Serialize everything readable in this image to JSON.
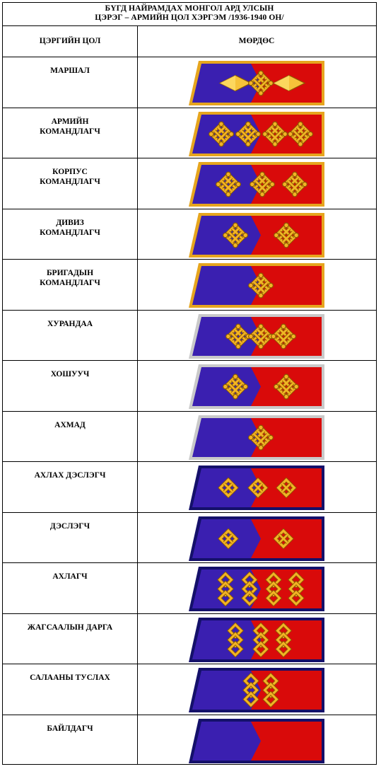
{
  "header": {
    "line1": "БҮГД НАЙРАМДАХ МОНГОЛ АРД УЛСЫН",
    "line2": "ЦЭРЭГ – АРМИЙН ЦОЛ ХЭРГЭМ /1936-1940 ОН/"
  },
  "columns": {
    "rank": "ЦЭРГИЙН ЦОЛ",
    "insignia": "МӨРДӨС"
  },
  "colors": {
    "blue": "#3a1fb0",
    "red": "#d90a0a",
    "gold": "#e6a51e",
    "silver": "#c9c9c9",
    "navy": "#14106a"
  },
  "ranks": [
    {
      "title": "МАРШАЛ",
      "border": "gold",
      "knots": 1,
      "knot_style": "square",
      "diamonds": true
    },
    {
      "title": "АРМИЙН\nКОМАНДЛАГЧ",
      "border": "gold",
      "knots": 4,
      "knot_style": "square"
    },
    {
      "title": "КОРПУС\nКОМАНДЛАГЧ",
      "border": "gold",
      "knots": 3,
      "knot_style": "square"
    },
    {
      "title": "ДИВИЗ\nКОМАНДЛАГЧ",
      "border": "gold",
      "knots": 2,
      "knot_style": "square"
    },
    {
      "title": "БРИГАДЫН\nКОМАНДЛАГЧ",
      "border": "gold",
      "knots": 1,
      "knot_style": "square"
    },
    {
      "title": "ХУРАНДАА",
      "border": "silver",
      "knots": 3,
      "knot_style": "square"
    },
    {
      "title": "ХОШУУЧ",
      "border": "silver",
      "knots": 2,
      "knot_style": "square"
    },
    {
      "title": "АХМАД",
      "border": "silver",
      "knots": 1,
      "knot_style": "square"
    },
    {
      "title": "АХЛАХ ДЭСЛЭГЧ",
      "border": "navy",
      "knots": 3,
      "knot_style": "diamond"
    },
    {
      "title": "ДЭСЛЭГЧ",
      "border": "navy",
      "knots": 2,
      "knot_style": "diamond"
    },
    {
      "title": "АХЛАГЧ",
      "border": "navy",
      "knots": 4,
      "knot_style": "tall"
    },
    {
      "title": "ЖАГСААЛЫН ДАРГА",
      "border": "navy",
      "knots": 3,
      "knot_style": "tall"
    },
    {
      "title": "САЛААНЫ ТУСЛАХ",
      "border": "navy",
      "knots": 2,
      "knot_style": "tall"
    },
    {
      "title": "БАЙЛДАГЧ",
      "border": "navy",
      "knots": 0,
      "knot_style": "none"
    }
  ]
}
